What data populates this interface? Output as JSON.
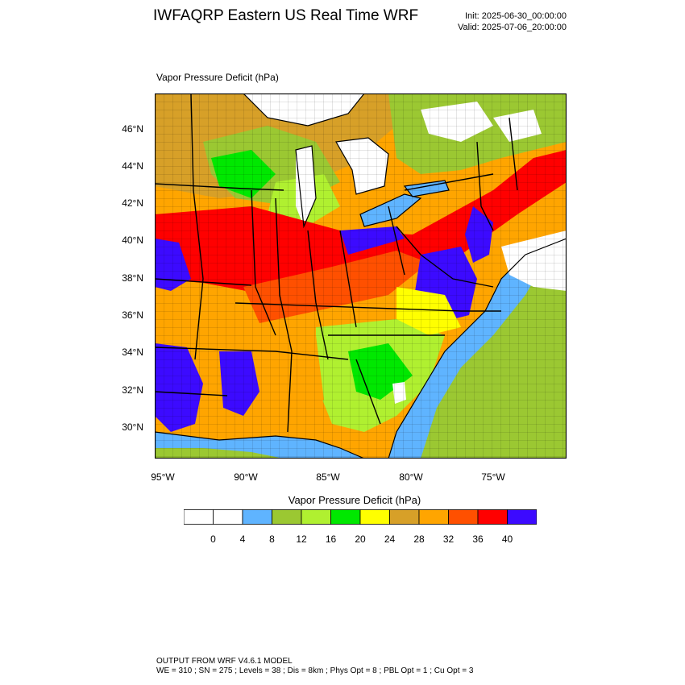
{
  "header": {
    "title": "IWFAQRP Eastern US Real Time WRF",
    "init": "Init: 2025-06-30_00:00:00",
    "valid": "Valid: 2025-07-06_20:00:00"
  },
  "map": {
    "variable_label": "Vapor Pressure Deficit   (hPa)",
    "lat_labels": [
      "46°N",
      "44°N",
      "42°N",
      "40°N",
      "38°N",
      "36°N",
      "34°N",
      "32°N",
      "30°N"
    ],
    "lon_labels": [
      "95°W",
      "90°W",
      "85°W",
      "80°W",
      "75°W"
    ]
  },
  "colorbar": {
    "title": "Vapor Pressure Deficit  (hPa)",
    "labels": [
      "0",
      "4",
      "8",
      "12",
      "16",
      "20",
      "24",
      "28",
      "32",
      "36",
      "40"
    ],
    "colors": [
      "#ffffff",
      "#ffffff",
      "#5fb4ff",
      "#9bc832",
      "#b0f030",
      "#00e800",
      "#ffff00",
      "#d7a028",
      "#ffa500",
      "#ff5000",
      "#ff0000",
      "#3c0aff"
    ]
  },
  "footer": {
    "line1": "OUTPUT FROM WRF V4.6.1 MODEL",
    "line2": "WE = 310 ; SN = 275 ; Levels = 38 ; Dis = 8km ; Phys Opt = 8 ; PBL Opt = 1 ; Cu Opt = 3"
  }
}
